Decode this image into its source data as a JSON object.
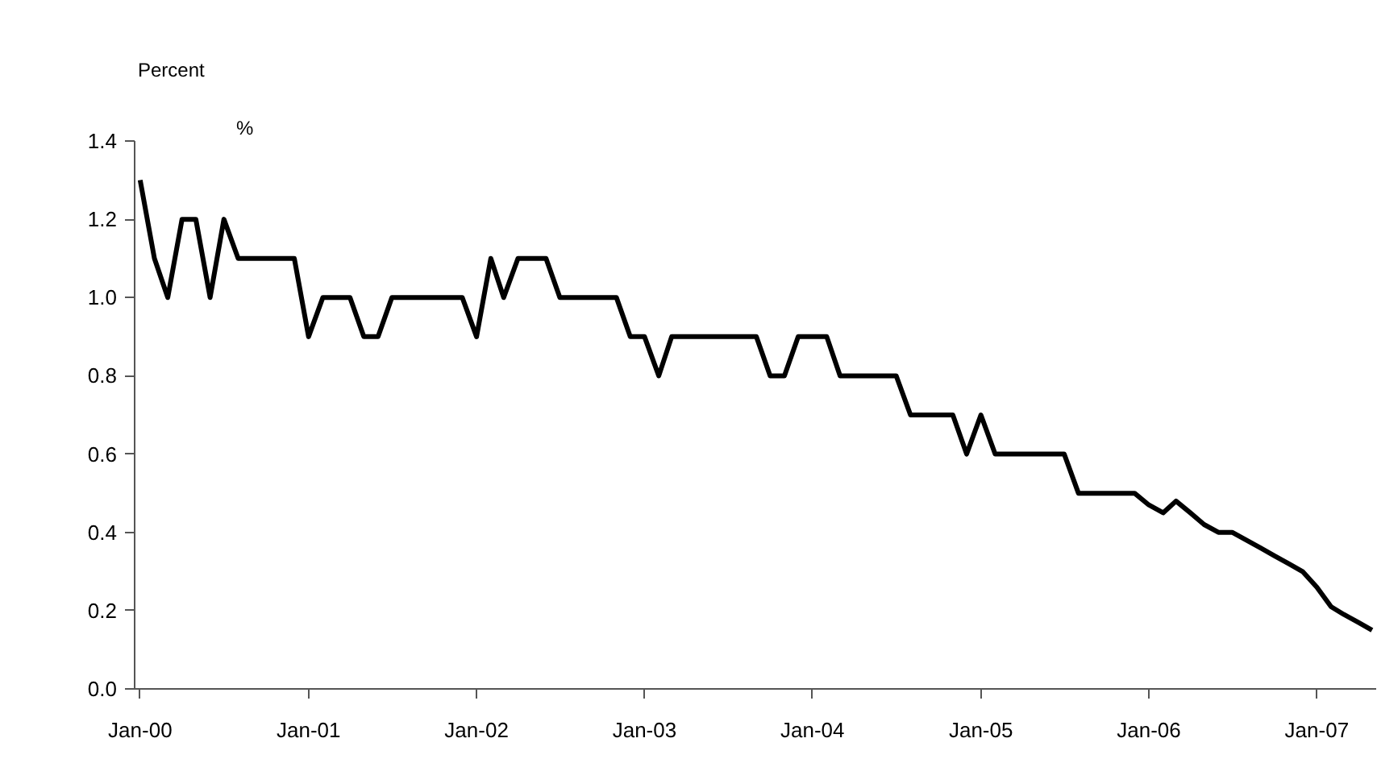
{
  "chart_data": {
    "type": "line",
    "title": "Percent",
    "ylabel": "%",
    "x": [
      "2000-01",
      "2000-02",
      "2000-03",
      "2000-04",
      "2000-05",
      "2000-06",
      "2000-07",
      "2000-08",
      "2000-09",
      "2000-10",
      "2000-11",
      "2000-12",
      "2001-01",
      "2001-02",
      "2001-03",
      "2001-04",
      "2001-05",
      "2001-06",
      "2001-07",
      "2001-08",
      "2001-09",
      "2001-10",
      "2001-11",
      "2001-12",
      "2002-01",
      "2002-02",
      "2002-03",
      "2002-04",
      "2002-05",
      "2002-06",
      "2002-07",
      "2002-08",
      "2002-09",
      "2002-10",
      "2002-11",
      "2002-12",
      "2003-01",
      "2003-02",
      "2003-03",
      "2003-04",
      "2003-05",
      "2003-06",
      "2003-07",
      "2003-08",
      "2003-09",
      "2003-10",
      "2003-11",
      "2003-12",
      "2004-01",
      "2004-02",
      "2004-03",
      "2004-04",
      "2004-05",
      "2004-06",
      "2004-07",
      "2004-08",
      "2004-09",
      "2004-10",
      "2004-11",
      "2004-12",
      "2005-01",
      "2005-02",
      "2005-03",
      "2005-04",
      "2005-05",
      "2005-06",
      "2005-07",
      "2005-08",
      "2005-09",
      "2005-10",
      "2005-11",
      "2005-12",
      "2006-01",
      "2006-02",
      "2006-03",
      "2006-04",
      "2006-05",
      "2006-06",
      "2006-07",
      "2006-08",
      "2006-09",
      "2006-10",
      "2006-11",
      "2006-12",
      "2007-01",
      "2007-02",
      "2007-03",
      "2007-04",
      "2007-05"
    ],
    "series": [
      {
        "color": "#000000",
        "values": [
          1.3,
          1.1,
          1.0,
          1.2,
          1.2,
          1.0,
          1.2,
          1.1,
          1.1,
          1.1,
          1.1,
          1.1,
          0.9,
          1.0,
          1.0,
          1.0,
          0.9,
          0.9,
          1.0,
          1.0,
          1.0,
          1.0,
          1.0,
          1.0,
          0.9,
          1.1,
          1.0,
          1.1,
          1.1,
          1.1,
          1.0,
          1.0,
          1.0,
          1.0,
          1.0,
          0.9,
          0.9,
          0.8,
          0.9,
          0.9,
          0.9,
          0.9,
          0.9,
          0.9,
          0.9,
          0.8,
          0.8,
          0.9,
          0.9,
          0.9,
          0.8,
          0.8,
          0.8,
          0.8,
          0.8,
          0.7,
          0.7,
          0.7,
          0.7,
          0.6,
          0.7,
          0.6,
          0.6,
          0.6,
          0.6,
          0.6,
          0.6,
          0.5,
          0.5,
          0.5,
          0.5,
          0.5,
          0.47,
          0.45,
          0.48,
          0.45,
          0.42,
          0.4,
          0.4,
          0.38,
          0.36,
          0.34,
          0.32,
          0.3,
          0.26,
          0.21,
          0.19,
          0.17,
          0.15
        ]
      }
    ],
    "xlim": [
      "1999-12-20",
      "2007-05-10"
    ],
    "xticks": [
      {
        "value": "2000-01",
        "label": "Jan-00"
      },
      {
        "value": "2001-01",
        "label": "Jan-01"
      },
      {
        "value": "2002-01",
        "label": "Jan-02"
      },
      {
        "value": "2003-01",
        "label": "Jan-03"
      },
      {
        "value": "2004-01",
        "label": "Jan-04"
      },
      {
        "value": "2005-01",
        "label": "Jan-05"
      },
      {
        "value": "2006-01",
        "label": "Jan-06"
      },
      {
        "value": "2007-01",
        "label": "Jan-07"
      }
    ],
    "ylim": [
      0,
      1.4
    ],
    "yticks": [
      {
        "value": 0,
        "label": "0.0"
      },
      {
        "value": 0.2,
        "label": "0.2"
      },
      {
        "value": 0.4,
        "label": "0.4"
      },
      {
        "value": 0.6,
        "label": "0.6"
      },
      {
        "value": 0.8,
        "label": "0.8"
      },
      {
        "value": 1.0,
        "label": "1.0"
      },
      {
        "value": 1.2,
        "label": "1.2"
      },
      {
        "value": 1.4,
        "label": "1.4"
      }
    ],
    "grid": false,
    "line_style": "solid"
  }
}
